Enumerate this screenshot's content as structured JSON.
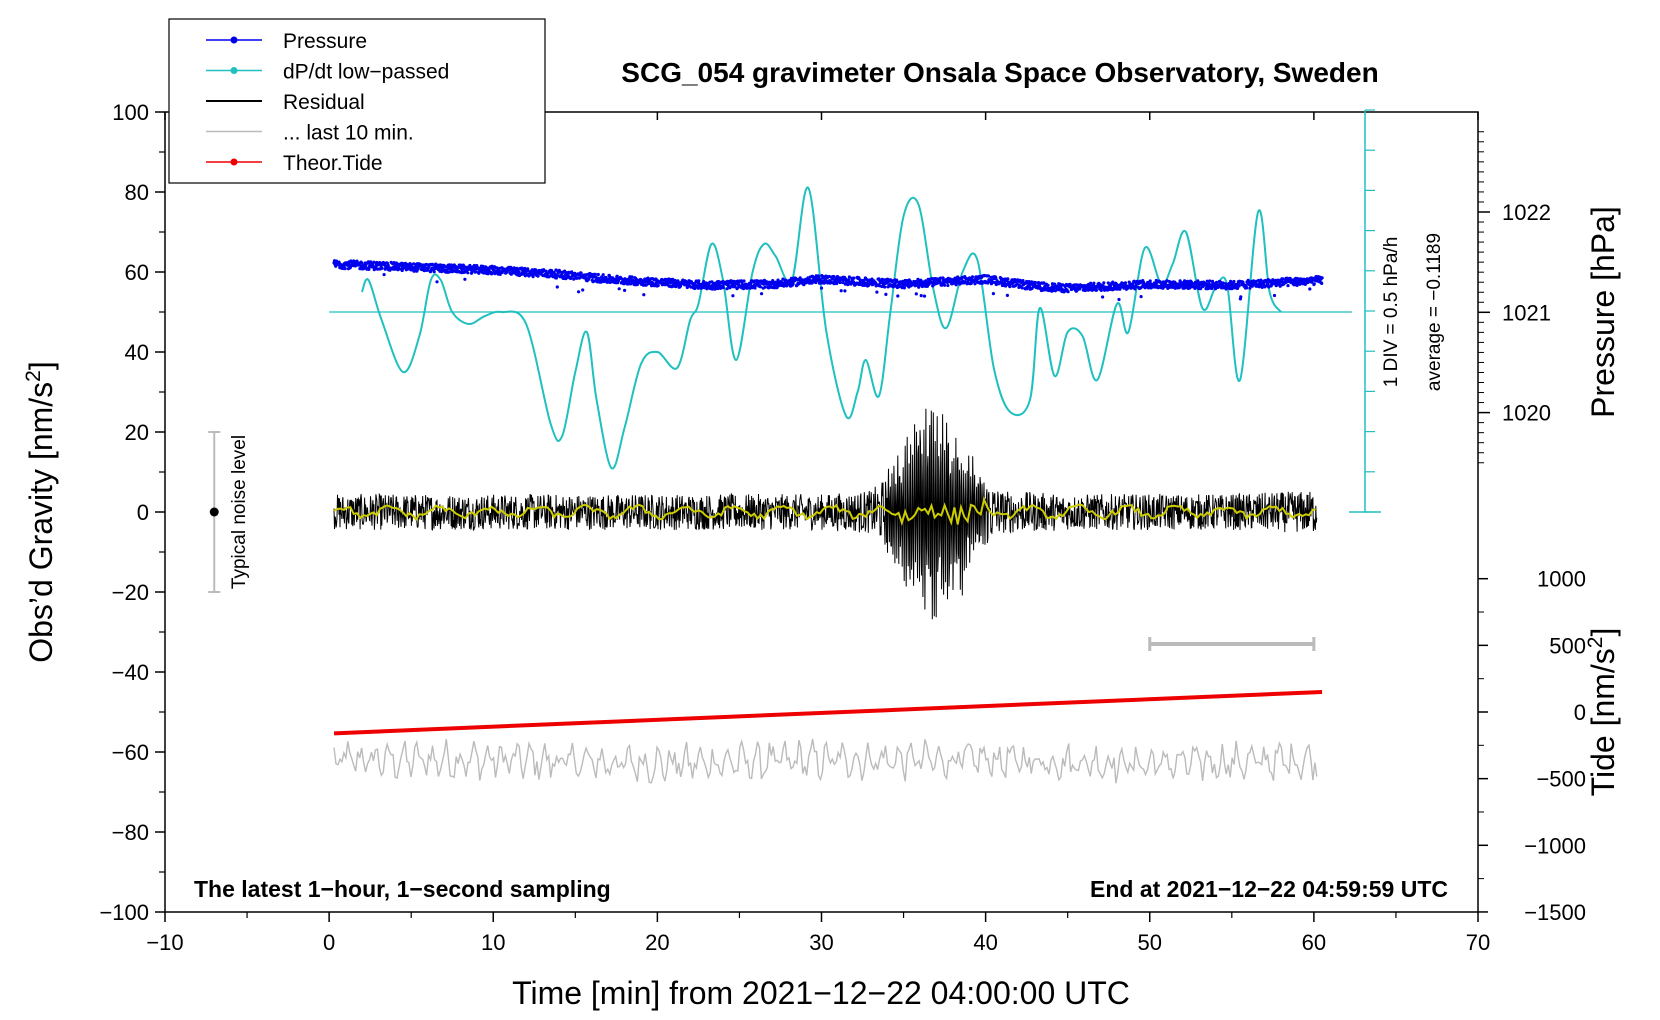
{
  "chart_data": {
    "type": "line",
    "title": "SCG_054 gravimeter Onsala Space Observatory, Sweden",
    "xlabel": "Time [min] from 2021−12−22 04:00:00 UTC",
    "ylabel_left": "Obs’d Gravity [nm/s²]",
    "ylabel_pressure": "Pressure [hPa]",
    "ylabel_tide": "Tide [nm/s²]",
    "xlim": [
      -10,
      70
    ],
    "ylim": [
      -100,
      100
    ],
    "pressure_lim": [
      1018,
      1022.95
    ],
    "tide_lim": [
      -1500,
      1500
    ],
    "grid": false,
    "legend_position": "top-left",
    "x_ticks": [
      "−10",
      "0",
      "10",
      "20",
      "30",
      "40",
      "50",
      "60",
      "70"
    ],
    "y_ticks": [
      "100",
      "80",
      "60",
      "40",
      "20",
      "0",
      "−20",
      "−40",
      "−60",
      "−80",
      "−100"
    ],
    "pressure_ticks": [
      "1022",
      "1021",
      "1020"
    ],
    "tide_ticks": [
      "1000",
      "500",
      "0",
      "−500",
      "−1000",
      "−1500"
    ],
    "legend": [
      {
        "label": "Pressure",
        "color": "#0000ee",
        "marker": true
      },
      {
        "label": "dP/dt low−passed",
        "color": "#20c0c0",
        "marker": true
      },
      {
        "label": "Residual",
        "color": "#000000",
        "marker": false
      },
      {
        "label": "... last 10 min.",
        "color": "#bbbbbb",
        "marker": false
      },
      {
        "label": "Theor.Tide",
        "color": "#ee0000",
        "marker": true
      }
    ],
    "annotations": {
      "noise_label": "Typical noise level",
      "noise_range": [
        -20,
        20
      ],
      "dpdt_scale": "1 DIV = 0.5 hPa/h",
      "dpdt_average": "average = −0.1189",
      "bottom_left": "The latest 1−hour, 1−second sampling",
      "bottom_right": "End at 2021−12−22 04:59:59 UTC",
      "last10_bar_x": [
        50,
        60
      ],
      "last10_bar_y": -33
    },
    "series": [
      {
        "name": "Pressure",
        "axis": "pressure",
        "color": "#0000ee",
        "x": [
          0.3,
          5,
          10,
          14,
          17,
          20,
          23,
          27,
          30,
          35,
          40,
          43,
          45,
          50,
          55,
          60.5
        ],
        "y": [
          1021.48,
          1021.45,
          1021.42,
          1021.38,
          1021.33,
          1021.3,
          1021.27,
          1021.28,
          1021.33,
          1021.28,
          1021.33,
          1021.26,
          1021.24,
          1021.28,
          1021.27,
          1021.32
        ]
      },
      {
        "name": "dP/dt low−passed",
        "axis": "gravity",
        "color": "#20c0c0",
        "x": [
          2,
          2.4,
          3.2,
          4.5,
          5.5,
          6.2,
          6.8,
          7.5,
          8.5,
          9.5,
          10.5,
          12,
          13.5,
          14.2,
          15,
          15.7,
          16.3,
          17.2,
          18,
          19,
          20,
          21.2,
          22,
          22.5,
          23.3,
          24,
          24.8,
          25.8,
          26.5,
          27.2,
          28.2,
          29.2,
          30.3,
          31.5,
          32.2,
          32.7,
          33.5,
          34.2,
          35,
          35.9,
          36.8,
          37.6,
          38.6,
          39.5,
          40.5,
          41.5,
          42.7,
          43.3,
          44.2,
          45,
          45.9,
          46.8,
          48,
          48.7,
          49.7,
          50.7,
          51.4,
          52.2,
          53.2,
          54,
          54.7,
          55.5,
          56.6,
          57.3,
          58
        ],
        "y": [
          55,
          58,
          48,
          35,
          44,
          58,
          58,
          50,
          47,
          49,
          50,
          47,
          22,
          19,
          35,
          45,
          28,
          11,
          21,
          37,
          40,
          36,
          48,
          52,
          67,
          58,
          38,
          60,
          67,
          64,
          58,
          81,
          45,
          24,
          30,
          38,
          29,
          50,
          74,
          77,
          56,
          46,
          60,
          63,
          36,
          25,
          28,
          51,
          34,
          45,
          44,
          33,
          52,
          45,
          66,
          57,
          62,
          70,
          51,
          56,
          57,
          33,
          75,
          55,
          50
        ]
      },
      {
        "name": "Residual",
        "axis": "gravity",
        "color": "#000000",
        "x": [
          0.3,
          5,
          10,
          15,
          20,
          25,
          30,
          33,
          34.5,
          35.5,
          36.5,
          37.5,
          38.5,
          39.5,
          41,
          45,
          50,
          55,
          60.2
        ],
        "y_envelope": [
          5,
          5,
          5,
          5,
          5,
          5,
          5,
          6,
          12,
          20,
          26,
          22,
          20,
          12,
          6,
          5,
          5,
          5,
          6
        ]
      },
      {
        "name": "... last 10 min.",
        "axis": "gravity",
        "color": "#bbbbbb",
        "x": [
          0.3,
          10,
          20,
          30,
          40,
          50,
          60.2
        ],
        "y_center": [
          -62,
          -62,
          -63,
          -62,
          -62,
          -63,
          -62
        ],
        "y_amplitude": 4.5
      },
      {
        "name": "Theor.Tide",
        "axis": "tide",
        "color": "#ee0000",
        "x": [
          0.3,
          60.5
        ],
        "y": [
          -160,
          150
        ]
      }
    ]
  }
}
